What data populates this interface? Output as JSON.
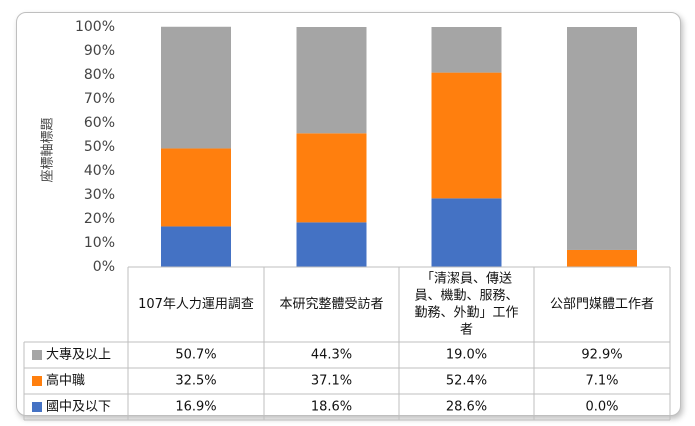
{
  "chart_data": {
    "type": "bar",
    "stacked": true,
    "percent_stacked": true,
    "ylabel": "座標軸標題",
    "ylim": [
      0,
      100
    ],
    "yticks": [
      "0%",
      "10%",
      "20%",
      "30%",
      "40%",
      "50%",
      "60%",
      "70%",
      "80%",
      "90%",
      "100%"
    ],
    "categories": [
      [
        "107年人力運用調查"
      ],
      [
        "本研究整體受訪者"
      ],
      [
        "「清潔員、傳送",
        "員、機動、服務、",
        "勤務、外勤」工作",
        "者"
      ],
      [
        "公部門媒體工作者"
      ]
    ],
    "series": [
      {
        "name": "國中及以下",
        "color": "#4472c4",
        "values": [
          16.9,
          18.6,
          28.6,
          0.0
        ],
        "labels": [
          "16.9%",
          "18.6%",
          "28.6%",
          "0.0%"
        ]
      },
      {
        "name": "高中職",
        "color": "#ff7f0e",
        "values": [
          32.5,
          37.1,
          52.4,
          7.1
        ],
        "labels": [
          "32.5%",
          "37.1%",
          "52.4%",
          "7.1%"
        ]
      },
      {
        "name": "大專及以上",
        "color": "#a5a5a5",
        "values": [
          50.7,
          44.3,
          19.0,
          92.9
        ],
        "labels": [
          "50.7%",
          "44.3%",
          "19.0%",
          "92.9%"
        ]
      }
    ],
    "table_row_order": [
      2,
      1,
      0
    ],
    "grid": false,
    "legend": "data-table"
  }
}
